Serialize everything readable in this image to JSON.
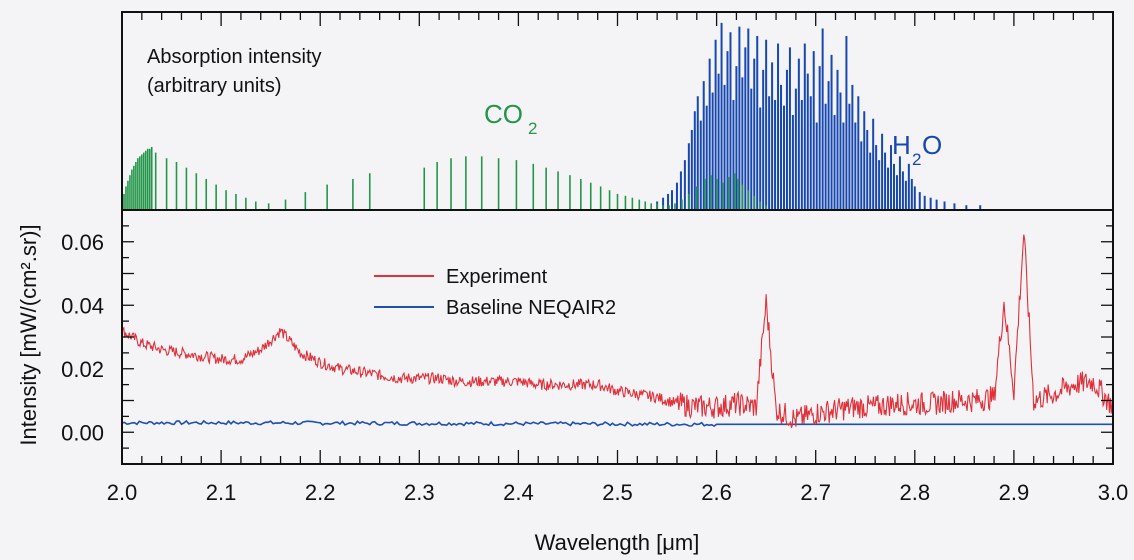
{
  "chart_data": [
    {
      "type": "bar",
      "panel": "top",
      "label_line1": "Absorption intensity",
      "label_line2": "(arbitrary units)",
      "xlim": [
        2.0,
        3.0
      ],
      "ylim": [
        0,
        1
      ],
      "series": [
        {
          "name": "CO2",
          "label_main": "CO",
          "label_sub": "2",
          "color": "#23964a",
          "x": [
            2.002,
            2.004,
            2.006,
            2.008,
            2.01,
            2.012,
            2.014,
            2.016,
            2.018,
            2.02,
            2.022,
            2.024,
            2.026,
            2.028,
            2.03,
            2.034,
            2.045,
            2.055,
            2.065,
            2.075,
            2.085,
            2.095,
            2.105,
            2.115,
            2.125,
            2.135,
            2.148,
            2.165,
            2.185,
            2.207,
            2.233,
            2.25,
            2.305,
            2.318,
            2.332,
            2.347,
            2.363,
            2.38,
            2.398,
            2.415,
            2.428,
            2.44,
            2.452,
            2.463,
            2.473,
            2.483,
            2.492,
            2.5,
            2.508,
            2.515,
            2.522,
            2.528,
            2.534,
            2.54,
            2.546,
            2.552,
            2.558,
            2.565,
            2.572,
            2.58,
            2.588,
            2.594,
            2.6,
            2.606,
            2.612,
            2.618,
            2.622,
            2.626,
            2.632,
            2.638,
            2.644,
            2.65
          ],
          "values": [
            0.08,
            0.12,
            0.15,
            0.18,
            0.21,
            0.23,
            0.25,
            0.27,
            0.28,
            0.29,
            0.3,
            0.31,
            0.32,
            0.32,
            0.33,
            0.3,
            0.27,
            0.25,
            0.22,
            0.19,
            0.16,
            0.13,
            0.1,
            0.08,
            0.06,
            0.04,
            0.03,
            0.05,
            0.09,
            0.13,
            0.16,
            0.19,
            0.22,
            0.25,
            0.27,
            0.28,
            0.28,
            0.27,
            0.26,
            0.24,
            0.22,
            0.2,
            0.18,
            0.16,
            0.14,
            0.12,
            0.1,
            0.08,
            0.07,
            0.06,
            0.05,
            0.04,
            0.03,
            0.03,
            0.02,
            0.02,
            0.03,
            0.05,
            0.08,
            0.12,
            0.16,
            0.18,
            0.16,
            0.14,
            0.17,
            0.19,
            0.16,
            0.13,
            0.1,
            0.07,
            0.04,
            0.02
          ]
        },
        {
          "name": "H2O",
          "label_main": "H",
          "label_sub": "2",
          "label_end": "O",
          "color": "#1748b0",
          "x": [
            2.54,
            2.546,
            2.551,
            2.555,
            2.56,
            2.564,
            2.568,
            2.572,
            2.575,
            2.578,
            2.581,
            2.584,
            2.587,
            2.59,
            2.593,
            2.596,
            2.599,
            2.602,
            2.605,
            2.608,
            2.611,
            2.614,
            2.617,
            2.62,
            2.623,
            2.626,
            2.629,
            2.632,
            2.635,
            2.638,
            2.641,
            2.644,
            2.647,
            2.65,
            2.653,
            2.656,
            2.659,
            2.662,
            2.665,
            2.668,
            2.671,
            2.674,
            2.677,
            2.68,
            2.683,
            2.686,
            2.689,
            2.692,
            2.695,
            2.698,
            2.701,
            2.704,
            2.707,
            2.71,
            2.713,
            2.716,
            2.719,
            2.722,
            2.725,
            2.728,
            2.731,
            2.734,
            2.737,
            2.74,
            2.743,
            2.746,
            2.749,
            2.752,
            2.755,
            2.758,
            2.761,
            2.764,
            2.767,
            2.77,
            2.773,
            2.776,
            2.779,
            2.782,
            2.785,
            2.788,
            2.791,
            2.794,
            2.797,
            2.8,
            2.805,
            2.81,
            2.816,
            2.822,
            2.83,
            2.84,
            2.852,
            2.866
          ],
          "values": [
            0.04,
            0.06,
            0.08,
            0.1,
            0.14,
            0.2,
            0.26,
            0.35,
            0.42,
            0.52,
            0.6,
            0.47,
            0.68,
            0.55,
            0.8,
            0.62,
            0.9,
            0.72,
            0.99,
            0.66,
            0.84,
            0.94,
            0.58,
            0.76,
            0.97,
            0.7,
            0.86,
            0.96,
            0.64,
            0.8,
            0.92,
            0.54,
            0.74,
            0.9,
            0.6,
            0.78,
            0.58,
            0.88,
            0.66,
            0.55,
            0.74,
            0.86,
            0.5,
            0.64,
            0.8,
            0.58,
            0.88,
            0.72,
            0.6,
            0.84,
            0.46,
            0.76,
            0.96,
            0.56,
            0.68,
            0.82,
            0.5,
            0.74,
            0.62,
            0.46,
            0.92,
            0.56,
            0.66,
            0.46,
            0.6,
            0.36,
            0.52,
            0.42,
            0.3,
            0.48,
            0.34,
            0.26,
            0.4,
            0.3,
            0.22,
            0.34,
            0.24,
            0.18,
            0.28,
            0.2,
            0.15,
            0.24,
            0.16,
            0.12,
            0.09,
            0.07,
            0.06,
            0.05,
            0.04,
            0.03,
            0.02,
            0.02
          ]
        }
      ]
    },
    {
      "type": "line",
      "panel": "bottom",
      "xlabel": "Wavelength [μm]",
      "ylabel": "Intensity [mW/(cm².sr)]",
      "xlim": [
        2.0,
        3.0
      ],
      "ylim": [
        -0.01,
        0.07
      ],
      "xticks": [
        "2.0",
        "2.1",
        "2.2",
        "2.3",
        "2.4",
        "2.5",
        "2.6",
        "2.7",
        "2.8",
        "2.9",
        "3.0"
      ],
      "yticks": [
        "0.00",
        "0.02",
        "0.04",
        "0.06"
      ],
      "legend_position": "top-center",
      "series": [
        {
          "name": "Experiment",
          "color": "#e0303a",
          "x": [
            2.0,
            2.02,
            2.04,
            2.06,
            2.08,
            2.1,
            2.12,
            2.14,
            2.16,
            2.18,
            2.2,
            2.22,
            2.24,
            2.26,
            2.28,
            2.3,
            2.32,
            2.34,
            2.36,
            2.38,
            2.4,
            2.42,
            2.44,
            2.46,
            2.48,
            2.5,
            2.52,
            2.54,
            2.56,
            2.58,
            2.6,
            2.62,
            2.64,
            2.65,
            2.66,
            2.68,
            2.7,
            2.72,
            2.74,
            2.76,
            2.78,
            2.8,
            2.82,
            2.84,
            2.86,
            2.88,
            2.89,
            2.9,
            2.91,
            2.92,
            2.94,
            2.96,
            2.98,
            3.0
          ],
          "values": [
            0.032,
            0.028,
            0.026,
            0.025,
            0.024,
            0.023,
            0.023,
            0.026,
            0.032,
            0.025,
            0.022,
            0.02,
            0.019,
            0.018,
            0.017,
            0.017,
            0.017,
            0.016,
            0.016,
            0.016,
            0.016,
            0.015,
            0.015,
            0.015,
            0.015,
            0.013,
            0.012,
            0.011,
            0.009,
            0.008,
            0.008,
            0.009,
            0.008,
            0.041,
            0.007,
            0.004,
            0.006,
            0.007,
            0.008,
            0.008,
            0.009,
            0.009,
            0.009,
            0.01,
            0.01,
            0.011,
            0.041,
            0.013,
            0.063,
            0.01,
            0.012,
            0.015,
            0.016,
            0.008
          ]
        },
        {
          "name": "Baseline NEQAIR2",
          "color": "#1e4fb2",
          "x": [
            2.0,
            2.1,
            2.2,
            2.3,
            2.4,
            2.5,
            2.6,
            2.7,
            2.8,
            2.9,
            3.0
          ],
          "values": [
            0.003,
            0.003,
            0.0029,
            0.0028,
            0.0027,
            0.0026,
            0.0025,
            0.0025,
            0.0025,
            0.0025,
            0.0025
          ]
        }
      ]
    }
  ]
}
